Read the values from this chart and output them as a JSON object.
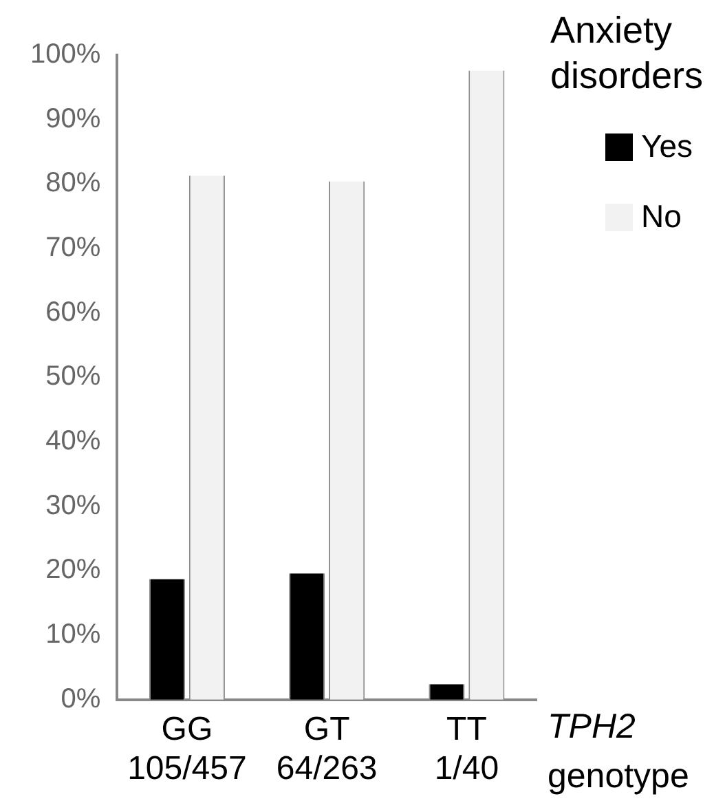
{
  "chart_data": {
    "type": "bar",
    "categories": [
      "GG\n105/457",
      "GT\n64/263",
      "TT\n1/40"
    ],
    "series": [
      {
        "name": "Yes",
        "color": "#000000",
        "values": [
          18.7,
          19.6,
          2.4
        ]
      },
      {
        "name": "No",
        "color": "#f2f2f2",
        "values": [
          81.3,
          80.4,
          97.6
        ]
      }
    ],
    "xlabel": "TPH2 genotype",
    "legend_title": "Anxiety disorders",
    "legend": "top right",
    "ylim": [
      0,
      100
    ],
    "yticks": [
      {
        "value": 0,
        "label": "0%"
      },
      {
        "value": 10,
        "label": "10%"
      },
      {
        "value": 20,
        "label": "20%"
      },
      {
        "value": 30,
        "label": "30%"
      },
      {
        "value": 40,
        "label": "40%"
      },
      {
        "value": 50,
        "label": "50%"
      },
      {
        "value": 60,
        "label": "60%"
      },
      {
        "value": 70,
        "label": "70%"
      },
      {
        "value": 80,
        "label": "80%"
      },
      {
        "value": 90,
        "label": "90%"
      },
      {
        "value": 100,
        "label": "100%"
      }
    ],
    "grid": false
  }
}
